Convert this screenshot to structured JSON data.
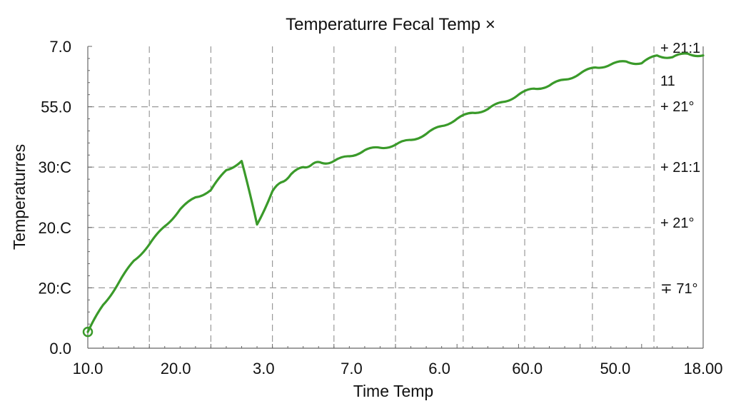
{
  "chart_data": {
    "type": "line",
    "title": "Temperaturre Fecal Temp ×",
    "xlabel": "Time Temp",
    "ylabel": "Temperaturres",
    "x_tick_labels": [
      "10.0",
      "20.0",
      "3.0",
      "7.0",
      "6.0",
      "60.0",
      "50.0",
      "18.00"
    ],
    "y_tick_labels": [
      "0.0",
      "20:C",
      "20.C",
      "30:C",
      "55.0",
      "7.0"
    ],
    "ylim": [
      0,
      5
    ],
    "grid": true,
    "annotations": [
      "+ 21:1",
      "11",
      "+ 21°",
      "+ 21:1",
      "+ 21°",
      "∓ 71°"
    ],
    "series": [
      {
        "color": "#3a9a2a",
        "x": [
          0,
          0.25,
          0.5,
          0.75,
          1,
          1.25,
          1.5,
          1.75,
          2,
          2.25,
          2.5,
          2.75,
          3,
          3.15,
          3.3,
          3.5,
          3.65,
          3.8,
          4,
          4.25,
          4.5,
          4.75,
          5,
          5.25,
          5.5,
          5.75,
          6,
          6.25,
          6.5,
          6.75,
          7,
          7.25,
          7.5,
          7.75,
          8,
          8.25,
          8.5,
          8.75,
          9,
          9.25,
          9.5,
          9.75,
          10
        ],
        "y": [
          0.27,
          0.72,
          1.08,
          1.45,
          1.72,
          2.02,
          2.3,
          2.5,
          2.62,
          2.95,
          3.1,
          2.05,
          2.6,
          2.75,
          2.88,
          3.0,
          3.05,
          3.07,
          3.1,
          3.18,
          3.28,
          3.32,
          3.37,
          3.45,
          3.55,
          3.68,
          3.8,
          3.9,
          3.96,
          4.08,
          4.2,
          4.3,
          4.35,
          4.45,
          4.55,
          4.65,
          4.7,
          4.75,
          4.72,
          4.85,
          4.82,
          4.88,
          4.85
        ]
      }
    ]
  }
}
